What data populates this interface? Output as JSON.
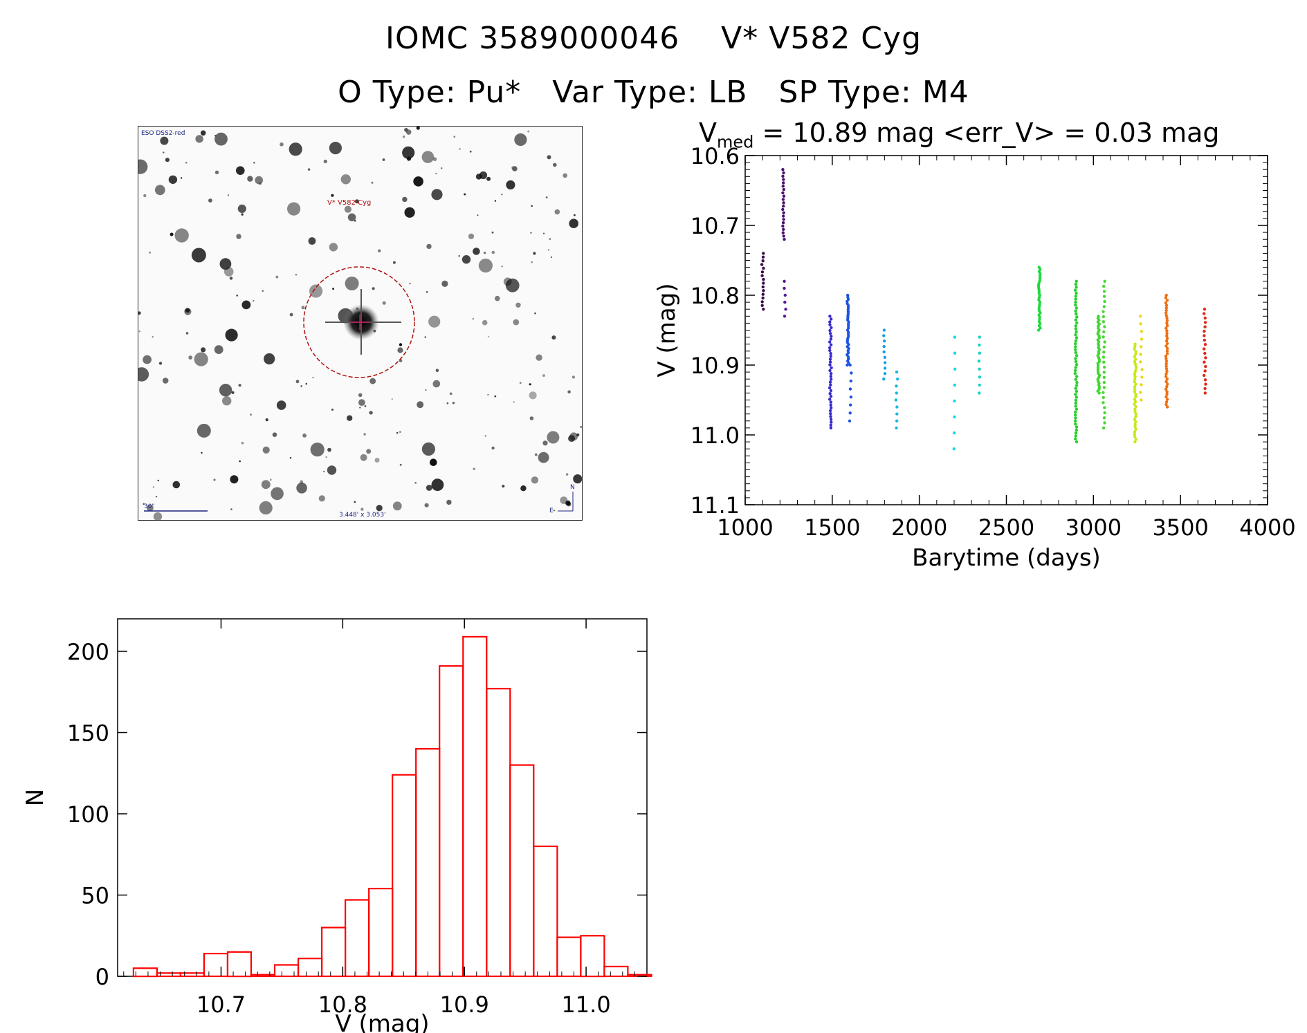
{
  "title_line1": "IOMC 3589000046    V* V582 Cyg",
  "title_line2": "O Type: Pu*   Var Type: LB   SP Type: M4",
  "finder_chart": {
    "survey_label": "ESO DSS2-red",
    "target_label": "V* V582 Cyg",
    "scale_label": "30\"",
    "fov_label": "3.448' x 3.053'",
    "north_label": "N",
    "east_label": "E"
  },
  "lightcurve": {
    "subtitle_v": "V",
    "subtitle_sub": "med",
    "subtitle_rest": " =  10.89 mag <err_V> = 0.03 mag"
  },
  "chart_data": [
    {
      "type": "scatter",
      "title": "Vmed = 10.89 mag <err_V> = 0.03 mag",
      "xlabel": "Barytime (days)",
      "ylabel": "V (mag)",
      "xlim": [
        1000,
        4000
      ],
      "ylim": [
        11.1,
        10.6
      ],
      "y_inverted": true,
      "xticks": [
        1000,
        1500,
        2000,
        2500,
        3000,
        3500,
        4000
      ],
      "xtick_labels": [
        "1000",
        "1500",
        "2000",
        "2500",
        "3000",
        "3500",
        "4000"
      ],
      "yticks": [
        10.6,
        10.7,
        10.8,
        10.9,
        11.0,
        11.1
      ],
      "ytick_labels": [
        "10.6",
        "10.7",
        "10.8",
        "10.9",
        "11.0",
        "11.1"
      ],
      "groups": [
        {
          "x": 1100,
          "ymin": 10.74,
          "ymax": 10.82,
          "color": "#3a0a4a",
          "n": 16
        },
        {
          "x": 1220,
          "ymin": 10.62,
          "ymax": 10.72,
          "color": "#4a1070",
          "n": 22
        },
        {
          "x": 1228,
          "ymin": 10.78,
          "ymax": 10.83,
          "color": "#55189a",
          "n": 6
        },
        {
          "x": 1490,
          "ymin": 10.83,
          "ymax": 10.99,
          "color": "#3a2acc",
          "n": 40
        },
        {
          "x": 1590,
          "ymin": 10.8,
          "ymax": 10.9,
          "color": "#1e55e0",
          "n": 35
        },
        {
          "x": 1605,
          "ymin": 10.9,
          "ymax": 10.98,
          "color": "#1e55e0",
          "n": 8
        },
        {
          "x": 1800,
          "ymin": 10.85,
          "ymax": 10.92,
          "color": "#1aa0e0",
          "n": 10
        },
        {
          "x": 1870,
          "ymin": 10.91,
          "ymax": 10.99,
          "color": "#18b8e0",
          "n": 9
        },
        {
          "x": 2200,
          "ymin": 10.86,
          "ymax": 11.02,
          "color": "#18d8e0",
          "n": 8
        },
        {
          "x": 2345,
          "ymin": 10.86,
          "ymax": 10.94,
          "color": "#18d0c8",
          "n": 8
        },
        {
          "x": 2690,
          "ymin": 10.76,
          "ymax": 10.85,
          "color": "#20d840",
          "n": 30
        },
        {
          "x": 2900,
          "ymin": 10.78,
          "ymax": 11.01,
          "color": "#28d028",
          "n": 55
        },
        {
          "x": 3030,
          "ymin": 10.83,
          "ymax": 10.94,
          "color": "#40d830",
          "n": 40
        },
        {
          "x": 3060,
          "ymin": 10.78,
          "ymax": 10.99,
          "color": "#48d830",
          "n": 30
        },
        {
          "x": 3240,
          "ymin": 10.87,
          "ymax": 11.01,
          "color": "#c8e818",
          "n": 40
        },
        {
          "x": 3275,
          "ymin": 10.83,
          "ymax": 10.95,
          "color": "#e8d818",
          "n": 12
        },
        {
          "x": 3420,
          "ymin": 10.8,
          "ymax": 10.96,
          "color": "#f07010",
          "n": 45
        },
        {
          "x": 3640,
          "ymin": 10.82,
          "ymax": 10.94,
          "color": "#e02a18",
          "n": 20
        }
      ]
    },
    {
      "type": "bar",
      "subtype": "histogram",
      "xlabel": "V (mag)",
      "ylabel": "N",
      "xlim": [
        10.615,
        11.05
      ],
      "ylim": [
        0,
        220
      ],
      "xticks": [
        10.7,
        10.8,
        10.9,
        11.0
      ],
      "xtick_labels": [
        "10.7",
        "10.8",
        "10.9",
        "11.0"
      ],
      "yticks": [
        0,
        50,
        100,
        150,
        200
      ],
      "ytick_labels": [
        "0",
        "50",
        "100",
        "150",
        "200"
      ],
      "bin_width": 0.01935,
      "bin_start": 10.628,
      "counts": [
        5,
        2,
        2,
        14,
        15,
        1,
        7,
        11,
        30,
        47,
        54,
        124,
        140,
        191,
        209,
        177,
        130,
        80,
        24,
        25,
        6,
        1
      ],
      "color": "#ff0000"
    }
  ]
}
